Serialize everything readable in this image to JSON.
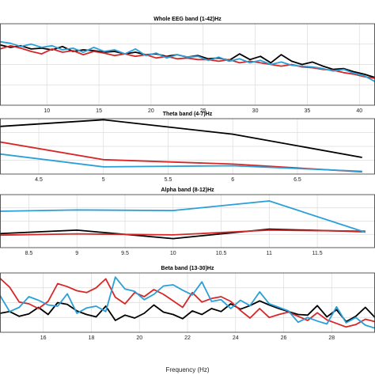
{
  "chart_data": [
    {
      "type": "line",
      "title": "Whole EEG band (1-42)Hz",
      "xlabel": "",
      "ylabel": "",
      "xlim": [
        5.5,
        41.5
      ],
      "ylim": [
        0,
        10
      ],
      "xticks": [
        10,
        15,
        20,
        25,
        30,
        35,
        40
      ],
      "grid": true,
      "x": [
        5.5,
        6.5,
        7.5,
        8.5,
        9.5,
        10.5,
        11.5,
        12.5,
        13.5,
        14.5,
        15.5,
        16.5,
        17.5,
        18.5,
        19.5,
        20.5,
        21.5,
        22.5,
        23.5,
        24.5,
        25.5,
        26.5,
        27.5,
        28.5,
        29.5,
        30.5,
        31.5,
        32.5,
        33.5,
        34.5,
        35.5,
        36.5,
        37.5,
        38.5,
        39.5,
        40.5,
        41.5
      ],
      "series": [
        {
          "color": "#000000",
          "values": [
            7.4,
            7.1,
            7.3,
            6.9,
            7.0,
            6.8,
            7.2,
            6.6,
            6.8,
            6.7,
            6.5,
            6.6,
            6.3,
            6.5,
            6.2,
            6.3,
            6.0,
            6.2,
            5.9,
            6.1,
            5.7,
            5.8,
            5.5,
            6.3,
            5.6,
            6.0,
            5.2,
            6.2,
            5.4,
            5.0,
            5.3,
            4.8,
            4.4,
            4.5,
            4.1,
            3.8,
            3.4
          ]
        },
        {
          "color": "#d62728",
          "values": [
            6.9,
            7.3,
            7.0,
            6.6,
            6.3,
            6.9,
            6.5,
            6.7,
            6.2,
            6.6,
            6.4,
            6.1,
            6.3,
            6.0,
            6.2,
            5.8,
            6.0,
            5.7,
            5.8,
            5.6,
            5.6,
            5.4,
            5.6,
            5.2,
            5.4,
            5.2,
            5.0,
            4.8,
            5.0,
            4.7,
            4.6,
            4.4,
            4.3,
            4.0,
            3.8,
            3.5,
            3.3
          ]
        },
        {
          "color": "#2a9fd8",
          "values": [
            7.8,
            7.6,
            7.2,
            7.5,
            7.1,
            7.3,
            6.8,
            7.0,
            6.5,
            7.1,
            6.6,
            6.8,
            6.3,
            6.9,
            6.1,
            6.4,
            5.8,
            6.2,
            5.9,
            6.0,
            5.5,
            5.9,
            5.4,
            5.7,
            5.2,
            5.5,
            5.0,
            5.3,
            4.9,
            4.8,
            4.7,
            4.5,
            4.2,
            4.4,
            3.9,
            3.6,
            2.9
          ]
        }
      ]
    },
    {
      "type": "line",
      "title": "Theta band (4-7)Hz",
      "xlabel": "",
      "ylabel": "",
      "xlim": [
        4.2,
        7.1
      ],
      "ylim": [
        0,
        10
      ],
      "xticks": [
        4.5,
        5,
        5.5,
        6,
        6.5
      ],
      "grid": true,
      "x": [
        4,
        5,
        6,
        7
      ],
      "series": [
        {
          "color": "#000000",
          "values": [
            8.3,
            9.8,
            7.2,
            3.0
          ]
        },
        {
          "color": "#d62728",
          "values": [
            6.6,
            2.6,
            1.8,
            0.4
          ]
        },
        {
          "color": "#2a9fd8",
          "values": [
            4.2,
            1.3,
            1.5,
            0.5
          ]
        }
      ]
    },
    {
      "type": "line",
      "title": "Alpha band (8-12)Hz",
      "xlabel": "",
      "ylabel": "",
      "xlim": [
        8.2,
        12.1
      ],
      "ylim": [
        0,
        10
      ],
      "xticks": [
        8.5,
        9,
        9.5,
        10,
        10.5,
        11,
        11.5
      ],
      "grid": true,
      "x": [
        8,
        9,
        10,
        11,
        12
      ],
      "series": [
        {
          "color": "#000000",
          "values": [
            2.5,
            3.3,
            1.7,
            3.5,
            3.0
          ]
        },
        {
          "color": "#d62728",
          "values": [
            2.3,
            2.6,
            2.4,
            3.3,
            3.1
          ]
        },
        {
          "color": "#2a9fd8",
          "values": [
            6.8,
            7.1,
            7.0,
            8.8,
            2.9
          ]
        }
      ]
    },
    {
      "type": "line",
      "title": "Beta band (13-30)Hz",
      "xlabel": "Frequency (Hz)",
      "ylabel": "",
      "xlim": [
        14.2,
        29.8
      ],
      "ylim": [
        0,
        10
      ],
      "xticks": [
        16,
        18,
        20,
        22,
        24,
        26,
        28
      ],
      "grid": true,
      "x": [
        14.2,
        14.6,
        15.0,
        15.4,
        15.8,
        16.2,
        16.6,
        17.0,
        17.4,
        17.8,
        18.2,
        18.6,
        19.0,
        19.4,
        19.8,
        20.2,
        20.6,
        21.0,
        21.4,
        21.8,
        22.2,
        22.6,
        23.0,
        23.4,
        23.8,
        24.2,
        24.6,
        25.0,
        25.4,
        25.8,
        26.2,
        26.6,
        27.0,
        27.4,
        27.8,
        28.2,
        28.6,
        29.0,
        29.4,
        29.8
      ],
      "series": [
        {
          "color": "#000000",
          "values": [
            3.2,
            3.5,
            2.7,
            3.1,
            4.2,
            3.0,
            5.0,
            4.7,
            3.6,
            3.0,
            2.6,
            4.4,
            2.0,
            2.9,
            2.4,
            3.2,
            4.6,
            3.4,
            3.0,
            2.3,
            3.6,
            3.0,
            4.0,
            3.5,
            4.8,
            3.9,
            4.5,
            5.3,
            4.6,
            4.0,
            3.5,
            3.0,
            2.9,
            4.5,
            2.6,
            3.8,
            1.8,
            2.7,
            4.2,
            2.5
          ]
        },
        {
          "color": "#d62728",
          "values": [
            9.1,
            7.6,
            5.1,
            4.8,
            4.0,
            5.2,
            8.2,
            7.7,
            7.0,
            6.7,
            7.5,
            9.0,
            5.9,
            4.8,
            6.7,
            6.0,
            7.2,
            6.4,
            5.3,
            4.2,
            6.7,
            5.1,
            5.7,
            6.0,
            5.2,
            3.7,
            2.4,
            4.0,
            2.5,
            3.0,
            3.4,
            2.7,
            2.0,
            3.3,
            2.1,
            1.5,
            0.9,
            1.3,
            2.2,
            1.8
          ]
        },
        {
          "color": "#2a9fd8",
          "values": [
            6.2,
            3.5,
            4.2,
            6.0,
            5.4,
            4.6,
            4.4,
            6.5,
            3.2,
            4.1,
            4.4,
            3.5,
            9.3,
            7.3,
            6.9,
            5.5,
            6.4,
            7.8,
            8.0,
            7.1,
            6.3,
            8.5,
            5.2,
            5.5,
            4.0,
            5.4,
            4.5,
            6.8,
            4.8,
            4.2,
            3.6,
            1.7,
            2.5,
            1.9,
            1.4,
            4.3,
            1.6,
            2.5,
            1.2,
            0.7
          ]
        }
      ]
    }
  ]
}
